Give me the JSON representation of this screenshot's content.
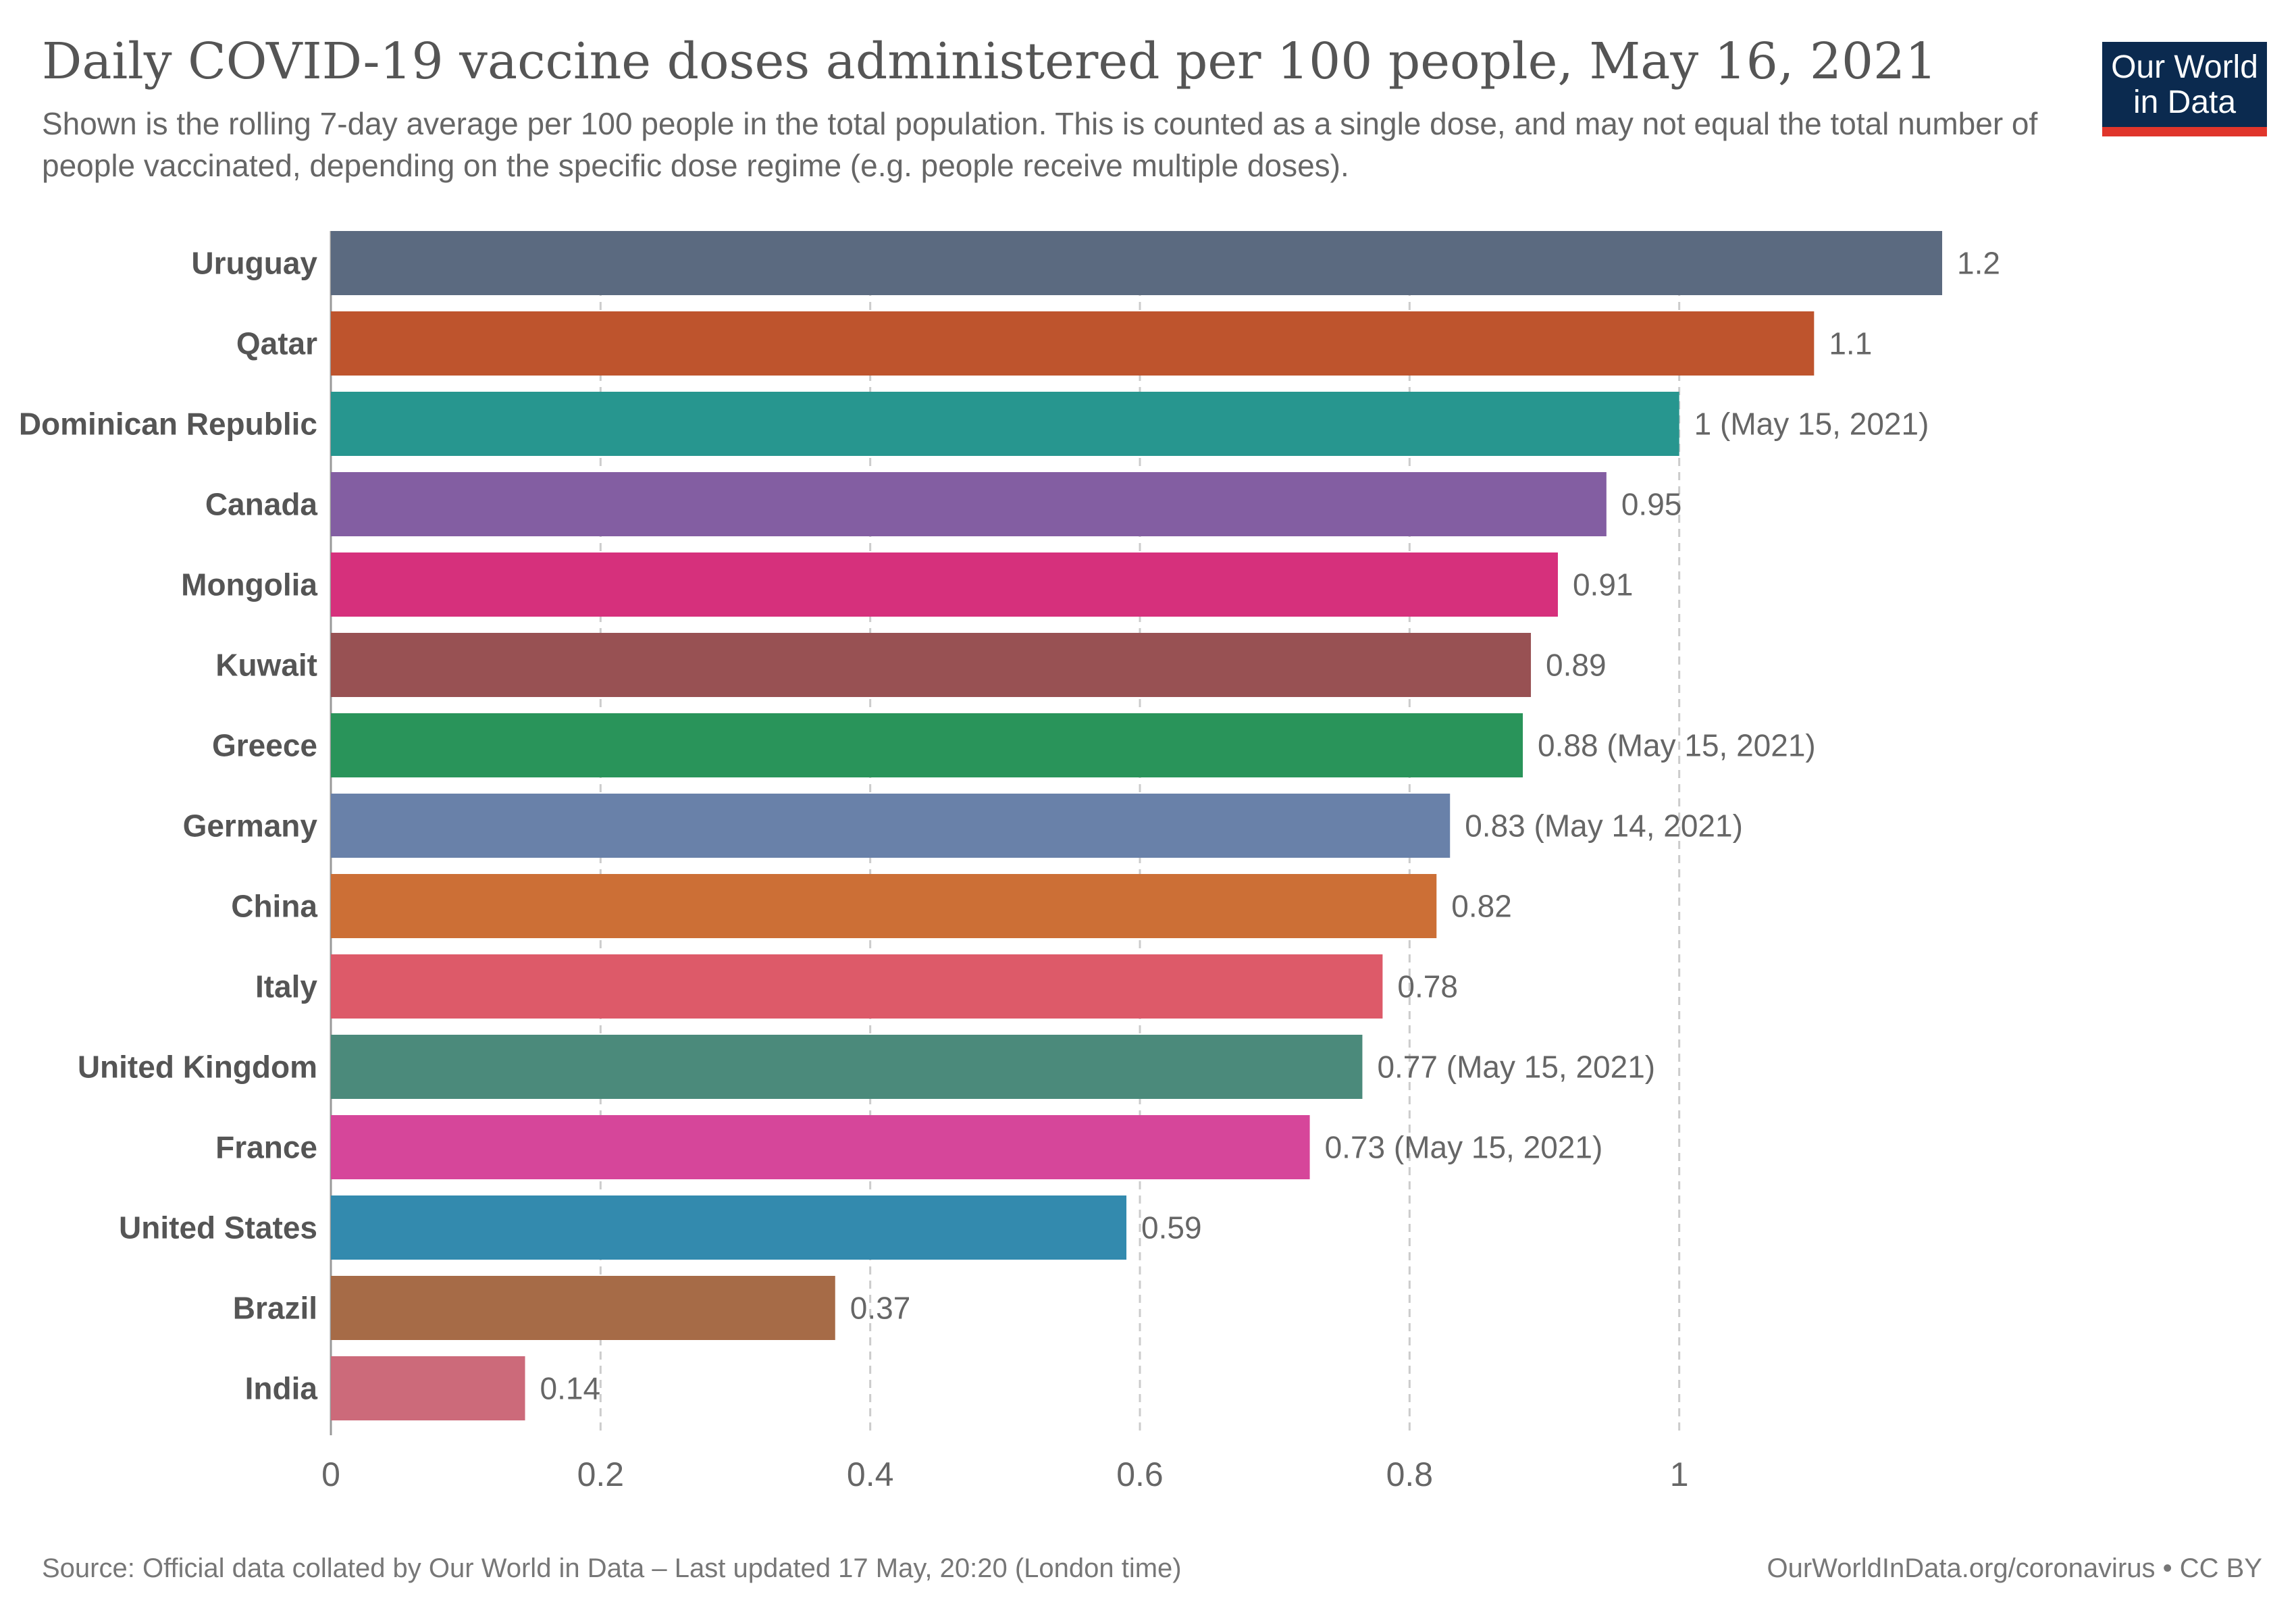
{
  "header": {
    "title": "Daily COVID-19 vaccine doses administered per 100 people, May 16, 2021",
    "subtitle": "Shown is the rolling 7-day average per 100 people in the total population. This is counted as a single dose, and may not equal the total number of people vaccinated, depending on the specific dose regime (e.g. people receive multiple doses).",
    "logo_line1": "Our World",
    "logo_line2": "in Data"
  },
  "footer": {
    "source": "Source: Official data collated by Our World in Data – Last updated 17 May, 20:20 (London time)",
    "credit": "OurWorldInData.org/coronavirus • CC BY"
  },
  "colors": {
    "logo_background": "#0b2a4f",
    "logo_accent": "#e0352b"
  },
  "chart_data": {
    "type": "bar",
    "orientation": "horizontal",
    "categories": [
      "Uruguay",
      "Qatar",
      "Dominican Republic",
      "Canada",
      "Mongolia",
      "Kuwait",
      "Greece",
      "Germany",
      "China",
      "Italy",
      "United Kingdom",
      "France",
      "United States",
      "Brazil",
      "India"
    ],
    "values": [
      1.195,
      1.1,
      1.0,
      0.946,
      0.91,
      0.89,
      0.884,
      0.83,
      0.82,
      0.78,
      0.765,
      0.726,
      0.59,
      0.374,
      0.144
    ],
    "value_labels": [
      "1.2",
      "1.1",
      "1 (May 15, 2021)",
      "0.95",
      "0.91",
      "0.89",
      "0.88 (May 15, 2021)",
      "0.83 (May 14, 2021)",
      "0.82",
      "0.78",
      "0.77 (May 15, 2021)",
      "0.73 (May 15, 2021)",
      "0.59",
      "0.37",
      "0.14"
    ],
    "colors": [
      "#5b6a80",
      "#be542d",
      "#27968f",
      "#835ea2",
      "#d6307c",
      "#985153",
      "#29945a",
      "#6981a9",
      "#cc6f36",
      "#dd5a69",
      "#4b8a7b",
      "#d6469a",
      "#338aae",
      "#a66b47",
      "#cc6a7a"
    ],
    "xlim": [
      0,
      1.2
    ],
    "xticks": [
      0,
      0.2,
      0.4,
      0.6,
      0.8,
      1
    ],
    "xtick_labels": [
      "0",
      "0.2",
      "0.4",
      "0.6",
      "0.8",
      "1"
    ],
    "grid": "vertical-dashed",
    "xlabel": "",
    "ylabel": ""
  }
}
